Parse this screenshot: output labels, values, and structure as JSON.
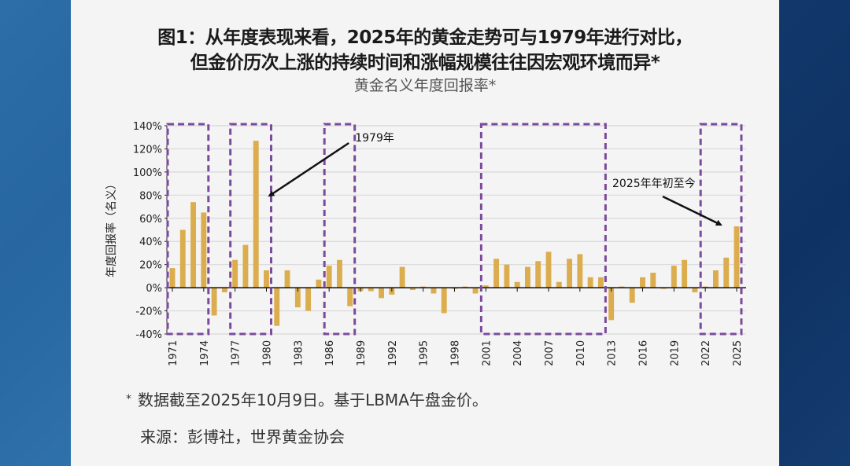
{
  "title_line1": "图1：从年度表现来看，2025年的黄金走势可与1979年进行对比，",
  "title_line2": "但金价历次上涨的持续时间和涨幅规模往往因宏观环境而异*",
  "subtitle": "黄金名义年度回报率*",
  "footnote_star": "*",
  "footnote": "数据截至2025年10月9日。基于LBMA午盘金价。",
  "source": "来源：彭博社，世界黄金协会",
  "colors": {
    "bar": "#dcad4e",
    "box": "#7a4a9c",
    "left_bg": "#2a6aa3",
    "right_bg": "#0f3566"
  },
  "chart_data": {
    "type": "bar",
    "title": "黄金名义年度回报率*",
    "xlabel": "",
    "ylabel": "年度回报率（名义）",
    "ylim": [
      -40,
      140
    ],
    "yticks": [
      -40,
      -20,
      0,
      20,
      40,
      60,
      80,
      100,
      120,
      140
    ],
    "ytick_labels": [
      "-40%",
      "-20%",
      "0%",
      "20%",
      "40%",
      "60%",
      "80%",
      "100%",
      "120%",
      "140%"
    ],
    "xtick_labels": [
      "1971",
      "1974",
      "1977",
      "1980",
      "1983",
      "1986",
      "1989",
      "1992",
      "1995",
      "1998",
      "2001",
      "2004",
      "2007",
      "2010",
      "2013",
      "2016",
      "2019",
      "2022",
      "2025"
    ],
    "grid": true,
    "categories": [
      1971,
      1972,
      1973,
      1974,
      1975,
      1976,
      1977,
      1978,
      1979,
      1980,
      1981,
      1982,
      1983,
      1984,
      1985,
      1986,
      1987,
      1988,
      1989,
      1990,
      1991,
      1992,
      1993,
      1994,
      1995,
      1996,
      1997,
      1998,
      1999,
      2000,
      2001,
      2002,
      2003,
      2004,
      2005,
      2006,
      2007,
      2008,
      2009,
      2010,
      2011,
      2012,
      2013,
      2014,
      2015,
      2016,
      2017,
      2018,
      2019,
      2020,
      2021,
      2022,
      2023,
      2024,
      2025
    ],
    "values": [
      17,
      50,
      74,
      65,
      -24,
      -4,
      24,
      37,
      127,
      15,
      -33,
      15,
      -17,
      -20,
      7,
      19,
      24,
      -16,
      -3,
      -3,
      -9,
      -6,
      18,
      -2,
      1,
      -5,
      -22,
      -1,
      1,
      -5,
      2,
      25,
      20,
      5,
      18,
      23,
      31,
      5,
      25,
      29,
      9,
      9,
      -28,
      0,
      -13,
      9,
      13,
      -1,
      19,
      24,
      -4,
      0,
      15,
      26,
      53
    ],
    "highlight_boxes": [
      {
        "from": 1971,
        "to": 1974
      },
      {
        "from": 1977,
        "to": 1980
      },
      {
        "from": 1986,
        "to": 1988
      },
      {
        "from": 2001,
        "to": 2012
      },
      {
        "from": 2022,
        "to": 2025
      }
    ],
    "annotations": [
      {
        "text": "1979年",
        "target_year": 1979
      },
      {
        "text": "2025年年初至今",
        "target_year": 2025
      }
    ]
  }
}
